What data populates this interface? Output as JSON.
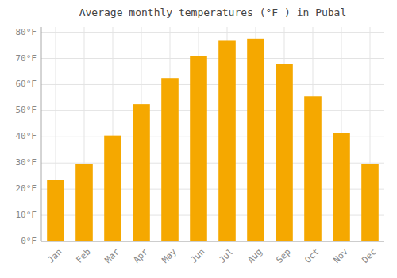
{
  "chart_data": {
    "type": "bar",
    "title": "Average monthly temperatures (°F ) in Pubal",
    "categories": [
      "Jan",
      "Feb",
      "Mar",
      "Apr",
      "May",
      "Jun",
      "Jul",
      "Aug",
      "Sep",
      "Oct",
      "Nov",
      "Dec"
    ],
    "values": [
      23.5,
      29.5,
      40.5,
      52.5,
      62.5,
      71.0,
      77.0,
      77.5,
      68.0,
      55.5,
      41.5,
      29.5
    ],
    "color": "#F5A800",
    "ylim": [
      0,
      82
    ],
    "yticks": [
      {
        "value": 0,
        "label": "0°F"
      },
      {
        "value": 10,
        "label": "10°F"
      },
      {
        "value": 20,
        "label": "20°F"
      },
      {
        "value": 30,
        "label": "30°F"
      },
      {
        "value": 40,
        "label": "40°F"
      },
      {
        "value": 50,
        "label": "50°F"
      },
      {
        "value": 60,
        "label": "60°F"
      },
      {
        "value": 70,
        "label": "70°F"
      },
      {
        "value": 80,
        "label": "80°F"
      }
    ],
    "grid": true
  }
}
